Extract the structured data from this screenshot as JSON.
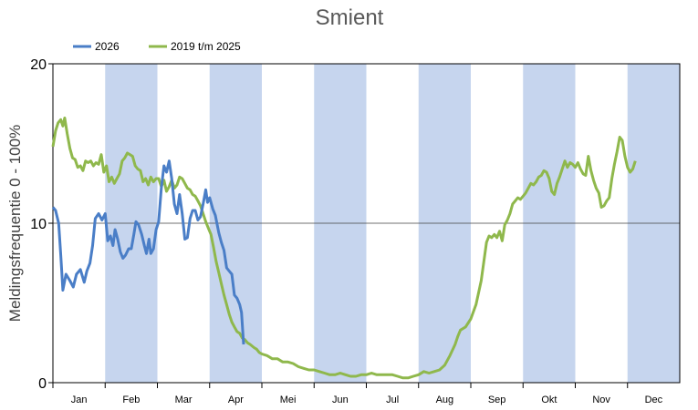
{
  "chart_data": {
    "type": "line",
    "title": "Smient",
    "ylabel": "Meldingsfrequentie 0 - 100%",
    "xlabel": "",
    "ylim": [
      0,
      20
    ],
    "yticks": [
      "0",
      "10",
      "20"
    ],
    "gridline_y": 10,
    "months": [
      "Jan",
      "Feb",
      "Mar",
      "Apr",
      "Mei",
      "Jun",
      "Jul",
      "Aug",
      "Sep",
      "Okt",
      "Nov",
      "Dec"
    ],
    "shaded_months": [
      1,
      3,
      5,
      7,
      9,
      11
    ],
    "shade_color": "#c6d5ee",
    "legend_position": "top-left",
    "series": [
      {
        "name": "2026",
        "color": "#4a7ec7",
        "points": [
          [
            0,
            11.0
          ],
          [
            0.1,
            10.8
          ],
          [
            0.22,
            10.0
          ],
          [
            0.3,
            8.0
          ],
          [
            0.38,
            5.8
          ],
          [
            0.5,
            6.8
          ],
          [
            0.65,
            6.4
          ],
          [
            0.78,
            6.0
          ],
          [
            0.9,
            6.8
          ],
          [
            1.05,
            7.1
          ],
          [
            1.2,
            6.3
          ],
          [
            1.3,
            7.0
          ],
          [
            1.42,
            7.5
          ],
          [
            1.52,
            8.6
          ],
          [
            1.62,
            10.3
          ],
          [
            1.75,
            10.6
          ],
          [
            1.88,
            10.2
          ],
          [
            2.0,
            10.6
          ],
          [
            2.1,
            8.9
          ],
          [
            2.2,
            9.2
          ],
          [
            2.3,
            8.6
          ],
          [
            2.38,
            9.6
          ],
          [
            2.48,
            9.0
          ],
          [
            2.58,
            8.2
          ],
          [
            2.68,
            7.8
          ],
          [
            2.78,
            8.0
          ],
          [
            2.9,
            8.4
          ],
          [
            3.0,
            8.4
          ],
          [
            3.1,
            9.3
          ],
          [
            3.18,
            10.1
          ],
          [
            3.28,
            9.9
          ],
          [
            3.4,
            9.3
          ],
          [
            3.5,
            8.6
          ],
          [
            3.58,
            8.1
          ],
          [
            3.68,
            9.0
          ],
          [
            3.75,
            8.1
          ],
          [
            3.85,
            8.4
          ],
          [
            3.95,
            9.6
          ],
          [
            4.05,
            10.1
          ],
          [
            4.15,
            12.2
          ],
          [
            4.25,
            13.6
          ],
          [
            4.35,
            13.2
          ],
          [
            4.45,
            13.9
          ],
          [
            4.55,
            12.8
          ],
          [
            4.65,
            11.2
          ],
          [
            4.75,
            10.6
          ],
          [
            4.85,
            11.8
          ],
          [
            4.95,
            10.6
          ],
          [
            5.05,
            9.0
          ],
          [
            5.15,
            9.1
          ],
          [
            5.25,
            10.3
          ],
          [
            5.35,
            10.8
          ],
          [
            5.45,
            10.8
          ],
          [
            5.55,
            10.2
          ],
          [
            5.65,
            10.4
          ],
          [
            5.75,
            11.2
          ],
          [
            5.85,
            12.1
          ],
          [
            5.92,
            11.3
          ],
          [
            6.0,
            11.6
          ],
          [
            6.12,
            10.9
          ],
          [
            6.22,
            10.5
          ],
          [
            6.35,
            9.4
          ],
          [
            6.45,
            8.8
          ],
          [
            6.55,
            8.3
          ],
          [
            6.65,
            7.2
          ],
          [
            6.75,
            7.0
          ],
          [
            6.85,
            6.8
          ],
          [
            6.95,
            5.5
          ],
          [
            7.05,
            5.3
          ],
          [
            7.15,
            4.9
          ],
          [
            7.22,
            4.4
          ],
          [
            7.3,
            2.4
          ]
        ]
      },
      {
        "name": "2019 t/m 2025",
        "color": "#8fb84c",
        "points": [
          [
            0,
            14.8
          ],
          [
            0.1,
            15.8
          ],
          [
            0.2,
            16.3
          ],
          [
            0.3,
            16.5
          ],
          [
            0.38,
            16.1
          ],
          [
            0.45,
            16.6
          ],
          [
            0.55,
            15.6
          ],
          [
            0.65,
            14.7
          ],
          [
            0.75,
            14.1
          ],
          [
            0.85,
            14.0
          ],
          [
            0.95,
            13.5
          ],
          [
            1.05,
            13.6
          ],
          [
            1.15,
            13.3
          ],
          [
            1.25,
            13.9
          ],
          [
            1.35,
            13.8
          ],
          [
            1.45,
            13.9
          ],
          [
            1.55,
            13.6
          ],
          [
            1.65,
            13.8
          ],
          [
            1.75,
            13.7
          ],
          [
            1.85,
            14.3
          ],
          [
            1.95,
            13.2
          ],
          [
            2.05,
            13.6
          ],
          [
            2.15,
            12.6
          ],
          [
            2.25,
            12.9
          ],
          [
            2.35,
            12.5
          ],
          [
            2.45,
            12.8
          ],
          [
            2.55,
            13.1
          ],
          [
            2.65,
            13.9
          ],
          [
            2.75,
            14.1
          ],
          [
            2.85,
            14.4
          ],
          [
            2.95,
            14.3
          ],
          [
            3.05,
            14.2
          ],
          [
            3.15,
            13.6
          ],
          [
            3.25,
            13.4
          ],
          [
            3.35,
            13.3
          ],
          [
            3.45,
            12.6
          ],
          [
            3.55,
            12.8
          ],
          [
            3.65,
            12.4
          ],
          [
            3.75,
            12.9
          ],
          [
            3.85,
            12.6
          ],
          [
            3.95,
            12.8
          ],
          [
            4.05,
            12.8
          ],
          [
            4.15,
            12.3
          ],
          [
            4.25,
            12.7
          ],
          [
            4.35,
            12.0
          ],
          [
            4.45,
            12.3
          ],
          [
            4.55,
            12.7
          ],
          [
            4.65,
            12.2
          ],
          [
            4.75,
            12.4
          ],
          [
            4.85,
            12.9
          ],
          [
            4.95,
            12.8
          ],
          [
            5.05,
            12.5
          ],
          [
            5.15,
            12.2
          ],
          [
            5.25,
            12.1
          ],
          [
            5.35,
            11.8
          ],
          [
            5.45,
            11.7
          ],
          [
            5.55,
            11.4
          ],
          [
            5.65,
            11.1
          ],
          [
            5.75,
            10.6
          ],
          [
            5.85,
            10.1
          ],
          [
            5.95,
            9.7
          ],
          [
            6.05,
            9.3
          ],
          [
            6.15,
            8.5
          ],
          [
            6.25,
            7.6
          ],
          [
            6.35,
            6.9
          ],
          [
            6.45,
            6.2
          ],
          [
            6.55,
            5.5
          ],
          [
            6.65,
            4.9
          ],
          [
            6.75,
            4.3
          ],
          [
            6.85,
            3.8
          ],
          [
            6.95,
            3.5
          ],
          [
            7.05,
            3.2
          ],
          [
            7.15,
            3.1
          ],
          [
            7.25,
            2.8
          ],
          [
            7.35,
            2.7
          ],
          [
            7.45,
            2.5
          ],
          [
            7.55,
            2.4
          ],
          [
            7.7,
            2.2
          ],
          [
            7.8,
            2.1
          ],
          [
            7.9,
            1.9
          ],
          [
            8.0,
            1.8
          ],
          [
            8.2,
            1.7
          ],
          [
            8.4,
            1.5
          ],
          [
            8.6,
            1.5
          ],
          [
            8.8,
            1.3
          ],
          [
            9.0,
            1.3
          ],
          [
            9.2,
            1.2
          ],
          [
            9.4,
            1.0
          ],
          [
            9.6,
            0.9
          ],
          [
            9.8,
            0.8
          ],
          [
            10.0,
            0.8
          ],
          [
            10.2,
            0.7
          ],
          [
            10.4,
            0.6
          ],
          [
            10.6,
            0.5
          ],
          [
            10.8,
            0.5
          ],
          [
            11.0,
            0.6
          ],
          [
            11.2,
            0.5
          ],
          [
            11.4,
            0.4
          ],
          [
            11.6,
            0.4
          ],
          [
            11.8,
            0.5
          ],
          [
            12.0,
            0.5
          ],
          [
            12.2,
            0.6
          ],
          [
            12.4,
            0.5
          ],
          [
            12.6,
            0.5
          ],
          [
            12.8,
            0.5
          ],
          [
            13.0,
            0.5
          ],
          [
            13.2,
            0.4
          ],
          [
            13.4,
            0.3
          ],
          [
            13.6,
            0.3
          ],
          [
            13.8,
            0.4
          ],
          [
            14.0,
            0.5
          ],
          [
            14.2,
            0.7
          ],
          [
            14.4,
            0.6
          ],
          [
            14.6,
            0.7
          ],
          [
            14.8,
            0.8
          ],
          [
            15.0,
            1.1
          ],
          [
            15.2,
            1.7
          ],
          [
            15.4,
            2.4
          ],
          [
            15.5,
            2.9
          ],
          [
            15.6,
            3.3
          ],
          [
            15.8,
            3.5
          ],
          [
            16.0,
            4.0
          ],
          [
            16.2,
            4.9
          ],
          [
            16.4,
            6.4
          ],
          [
            16.5,
            7.6
          ],
          [
            16.6,
            8.8
          ],
          [
            16.7,
            9.2
          ],
          [
            16.8,
            9.1
          ],
          [
            16.9,
            9.3
          ],
          [
            17.0,
            9.1
          ],
          [
            17.1,
            9.5
          ],
          [
            17.2,
            8.9
          ],
          [
            17.3,
            9.9
          ],
          [
            17.4,
            10.2
          ],
          [
            17.5,
            10.6
          ],
          [
            17.6,
            11.2
          ],
          [
            17.7,
            11.4
          ],
          [
            17.8,
            11.6
          ],
          [
            17.9,
            11.5
          ],
          [
            18.0,
            11.7
          ],
          [
            18.1,
            11.9
          ],
          [
            18.2,
            12.2
          ],
          [
            18.3,
            12.5
          ],
          [
            18.4,
            12.4
          ],
          [
            18.5,
            12.6
          ],
          [
            18.6,
            12.9
          ],
          [
            18.7,
            13.0
          ],
          [
            18.8,
            13.3
          ],
          [
            18.9,
            13.2
          ],
          [
            19.0,
            12.8
          ],
          [
            19.1,
            12.0
          ],
          [
            19.2,
            11.8
          ],
          [
            19.3,
            12.5
          ],
          [
            19.4,
            12.9
          ],
          [
            19.5,
            13.4
          ],
          [
            19.6,
            13.9
          ],
          [
            19.7,
            13.5
          ],
          [
            19.8,
            13.8
          ],
          [
            19.9,
            13.7
          ],
          [
            20.0,
            13.5
          ],
          [
            20.1,
            13.8
          ],
          [
            20.2,
            13.4
          ],
          [
            20.3,
            13.1
          ],
          [
            20.4,
            13.0
          ],
          [
            20.5,
            14.2
          ],
          [
            20.6,
            13.3
          ],
          [
            20.7,
            12.7
          ],
          [
            20.8,
            12.2
          ],
          [
            20.9,
            11.9
          ],
          [
            21.0,
            11.0
          ],
          [
            21.1,
            11.1
          ],
          [
            21.2,
            11.4
          ],
          [
            21.3,
            11.6
          ],
          [
            21.4,
            12.8
          ],
          [
            21.5,
            13.7
          ],
          [
            21.6,
            14.5
          ],
          [
            21.7,
            15.4
          ],
          [
            21.8,
            15.2
          ],
          [
            21.9,
            14.2
          ],
          [
            22.0,
            13.5
          ],
          [
            22.1,
            13.2
          ],
          [
            22.2,
            13.4
          ],
          [
            22.3,
            13.9
          ]
        ]
      }
    ]
  }
}
